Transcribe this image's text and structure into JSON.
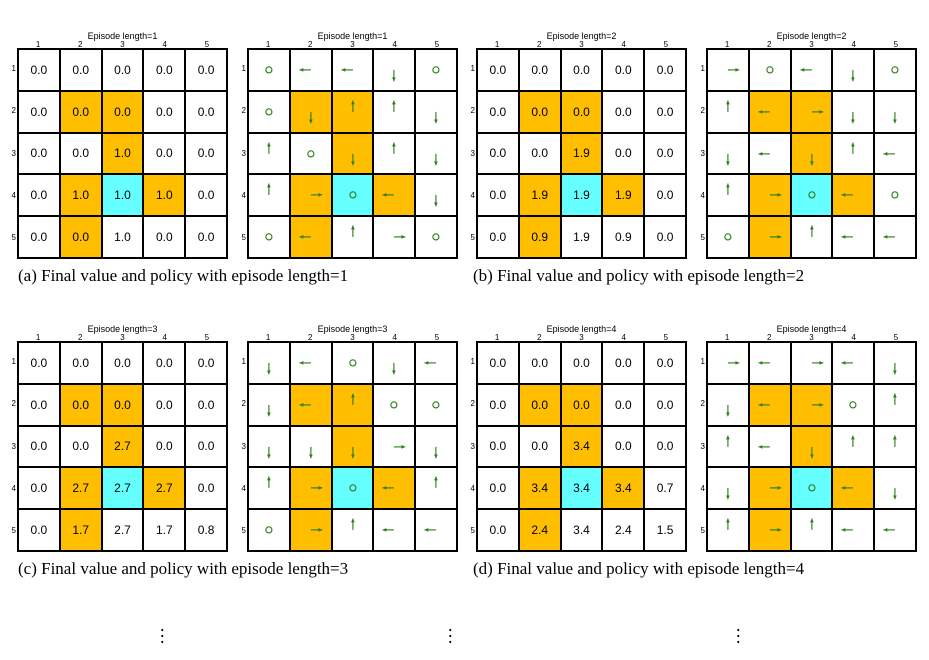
{
  "colors": {
    "forbidden": "#FFBF00",
    "target": "#66FFFF",
    "arrow": "#2E7D1A",
    "line": "#000000"
  },
  "panels": [
    {
      "caption": "(a) Final value and policy with episode length=1",
      "value": {
        "title": "Episode length=1",
        "cols": [
          "1",
          "2",
          "3",
          "4",
          "5"
        ],
        "rows": [
          "1",
          "2",
          "3",
          "4",
          "5"
        ],
        "cells": [
          [
            "0.0",
            "0.0",
            "0.0",
            "0.0",
            "0.0"
          ],
          [
            "0.0",
            "0.0",
            "0.0",
            "0.0",
            "0.0"
          ],
          [
            "0.0",
            "0.0",
            "1.0",
            "0.0",
            "0.0"
          ],
          [
            "0.0",
            "1.0",
            "1.0",
            "1.0",
            "0.0"
          ],
          [
            "0.0",
            "0.0",
            "1.0",
            "0.0",
            "0.0"
          ]
        ]
      },
      "policy": {
        "title": "Episode length=1",
        "cols": [
          "1",
          "2",
          "3",
          "4",
          "5"
        ],
        "rows": [
          "1",
          "2",
          "3",
          "4",
          "5"
        ],
        "cells": [
          [
            "stay",
            "left",
            "left",
            "down",
            "stay"
          ],
          [
            "stay",
            "down",
            "up",
            "up",
            "down"
          ],
          [
            "up",
            "stay",
            "down",
            "up",
            "down"
          ],
          [
            "up",
            "right",
            "stay",
            "left",
            "down"
          ],
          [
            "stay",
            "left",
            "up",
            "right",
            "stay"
          ]
        ]
      }
    },
    {
      "caption": "(b) Final value and policy with episode length=2",
      "value": {
        "title": "Episode length=2",
        "cols": [
          "1",
          "2",
          "3",
          "4",
          "5"
        ],
        "rows": [
          "1",
          "2",
          "3",
          "4",
          "5"
        ],
        "cells": [
          [
            "0.0",
            "0.0",
            "0.0",
            "0.0",
            "0.0"
          ],
          [
            "0.0",
            "0.0",
            "0.0",
            "0.0",
            "0.0"
          ],
          [
            "0.0",
            "0.0",
            "1.9",
            "0.0",
            "0.0"
          ],
          [
            "0.0",
            "1.9",
            "1.9",
            "1.9",
            "0.0"
          ],
          [
            "0.0",
            "0.9",
            "1.9",
            "0.9",
            "0.0"
          ]
        ]
      },
      "policy": {
        "title": "Episode length=2",
        "cols": [
          "1",
          "2",
          "3",
          "4",
          "5"
        ],
        "rows": [
          "1",
          "2",
          "3",
          "4",
          "5"
        ],
        "cells": [
          [
            "right",
            "stay",
            "left",
            "down",
            "stay"
          ],
          [
            "up",
            "left",
            "right",
            "down",
            "down"
          ],
          [
            "down",
            "left",
            "down",
            "up",
            "left"
          ],
          [
            "up",
            "right",
            "stay",
            "left",
            "stay"
          ],
          [
            "stay",
            "right",
            "up",
            "left",
            "left"
          ]
        ]
      }
    },
    {
      "caption": "(c) Final value and policy with episode length=3",
      "value": {
        "title": "Episode length=3",
        "cols": [
          "1",
          "2",
          "3",
          "4",
          "5"
        ],
        "rows": [
          "1",
          "2",
          "3",
          "4",
          "5"
        ],
        "cells": [
          [
            "0.0",
            "0.0",
            "0.0",
            "0.0",
            "0.0"
          ],
          [
            "0.0",
            "0.0",
            "0.0",
            "0.0",
            "0.0"
          ],
          [
            "0.0",
            "0.0",
            "2.7",
            "0.0",
            "0.0"
          ],
          [
            "0.0",
            "2.7",
            "2.7",
            "2.7",
            "0.0"
          ],
          [
            "0.0",
            "1.7",
            "2.7",
            "1.7",
            "0.8"
          ]
        ]
      },
      "policy": {
        "title": "Episode length=3",
        "cols": [
          "1",
          "2",
          "3",
          "4",
          "5"
        ],
        "rows": [
          "1",
          "2",
          "3",
          "4",
          "5"
        ],
        "cells": [
          [
            "down",
            "left",
            "stay",
            "down",
            "left"
          ],
          [
            "down",
            "left",
            "up",
            "stay",
            "stay"
          ],
          [
            "down",
            "down",
            "down",
            "right",
            "down"
          ],
          [
            "up",
            "right",
            "stay",
            "left",
            "up"
          ],
          [
            "stay",
            "right",
            "up",
            "left",
            "left"
          ]
        ]
      }
    },
    {
      "caption": "(d) Final value and policy with episode length=4",
      "value": {
        "title": "Episode length=4",
        "cols": [
          "1",
          "2",
          "3",
          "4",
          "5"
        ],
        "rows": [
          "1",
          "2",
          "3",
          "4",
          "5"
        ],
        "cells": [
          [
            "0.0",
            "0.0",
            "0.0",
            "0.0",
            "0.0"
          ],
          [
            "0.0",
            "0.0",
            "0.0",
            "0.0",
            "0.0"
          ],
          [
            "0.0",
            "0.0",
            "3.4",
            "0.0",
            "0.0"
          ],
          [
            "0.0",
            "3.4",
            "3.4",
            "3.4",
            "0.7"
          ],
          [
            "0.0",
            "2.4",
            "3.4",
            "2.4",
            "1.5"
          ]
        ]
      },
      "policy": {
        "title": "Episode length=4",
        "cols": [
          "1",
          "2",
          "3",
          "4",
          "5"
        ],
        "rows": [
          "1",
          "2",
          "3",
          "4",
          "5"
        ],
        "cells": [
          [
            "right",
            "left",
            "right",
            "left",
            "down"
          ],
          [
            "down",
            "left",
            "right",
            "stay",
            "up"
          ],
          [
            "up",
            "left",
            "down",
            "up",
            "up"
          ],
          [
            "down",
            "right",
            "stay",
            "left",
            "down"
          ],
          [
            "up",
            "right",
            "up",
            "left",
            "left"
          ]
        ]
      }
    }
  ]
}
